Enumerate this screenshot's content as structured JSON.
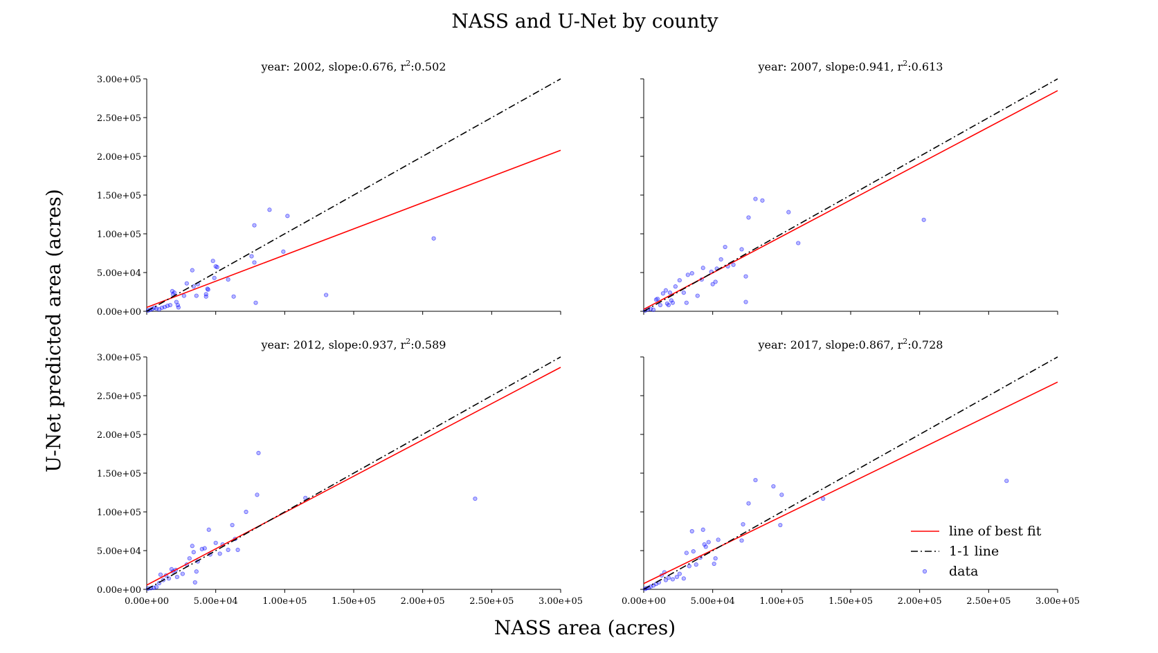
{
  "figure": {
    "title": "NASS and U-Net by county",
    "xlabel": "NASS area (acres)",
    "ylabel": "U-Net predicted area (acres)"
  },
  "legend": {
    "placement": "lower-right",
    "entries": [
      {
        "label": "line of best fit",
        "color": "#ff0000",
        "style": "solid"
      },
      {
        "label": "1-1 line",
        "color": "#000000",
        "style": "dashdot"
      },
      {
        "label": "data",
        "color": "#0000ff",
        "style": "marker"
      }
    ]
  },
  "colors": {
    "fit": "#ff0000",
    "identity": "#000000",
    "data": "#0000ff"
  },
  "tick_labels": [
    "0.00e+00",
    "5.00e+04",
    "1.00e+05",
    "1.50e+05",
    "2.00e+05",
    "2.50e+05",
    "3.00e+05"
  ],
  "chart_data": [
    {
      "type": "scatter",
      "title_prefix": "year: 2002, slope:0.676, r",
      "title_sup": "2",
      "title_suffix": ":0.502",
      "xlim": [
        0,
        300000
      ],
      "ylim": [
        0,
        300000
      ],
      "fit": {
        "slope": 0.676,
        "intercept": 5000
      },
      "x_tick_labels_shown": false,
      "y_tick_labels_shown": true,
      "points": [
        [
          1000,
          1000
        ],
        [
          2500,
          2000
        ],
        [
          4000,
          3000
        ],
        [
          5500,
          4500
        ],
        [
          7000,
          3500
        ],
        [
          9000,
          2500
        ],
        [
          11000,
          4500
        ],
        [
          13000,
          5500
        ],
        [
          15000,
          7000
        ],
        [
          17000,
          8000
        ],
        [
          20000,
          24000
        ],
        [
          19000,
          22000
        ],
        [
          18500,
          26000
        ],
        [
          21500,
          12000
        ],
        [
          22500,
          8000
        ],
        [
          23000,
          5000
        ],
        [
          27000,
          20000
        ],
        [
          29000,
          36000
        ],
        [
          33000,
          53000
        ],
        [
          34000,
          32000
        ],
        [
          36000,
          20000
        ],
        [
          37000,
          35000
        ],
        [
          43000,
          19000
        ],
        [
          43000,
          22000
        ],
        [
          44000,
          29000
        ],
        [
          44500,
          28000
        ],
        [
          48000,
          65000
        ],
        [
          49000,
          43000
        ],
        [
          50000,
          58000
        ],
        [
          51000,
          57000
        ],
        [
          59000,
          41000
        ],
        [
          63000,
          19000
        ],
        [
          76000,
          71000
        ],
        [
          78000,
          63000
        ],
        [
          79000,
          11000
        ],
        [
          78000,
          111000
        ],
        [
          89000,
          131000
        ],
        [
          99000,
          77000
        ],
        [
          102000,
          123000
        ],
        [
          130000,
          21000
        ],
        [
          208000,
          94000
        ]
      ]
    },
    {
      "type": "scatter",
      "title_prefix": "year: 2007, slope:0.941, r",
      "title_sup": "2",
      "title_suffix": ":0.613",
      "xlim": [
        0,
        300000
      ],
      "ylim": [
        0,
        300000
      ],
      "fit": {
        "slope": 0.941,
        "intercept": 2500
      },
      "x_tick_labels_shown": false,
      "y_tick_labels_shown": false,
      "points": [
        [
          1000,
          1000
        ],
        [
          3000,
          2500
        ],
        [
          5000,
          3000
        ],
        [
          7000,
          2000
        ],
        [
          9000,
          15000
        ],
        [
          10000,
          16000
        ],
        [
          12000,
          8000
        ],
        [
          14000,
          23000
        ],
        [
          16000,
          27000
        ],
        [
          17000,
          10000
        ],
        [
          18000,
          8000
        ],
        [
          19000,
          24000
        ],
        [
          20000,
          14000
        ],
        [
          21000,
          11000
        ],
        [
          23000,
          32000
        ],
        [
          26000,
          40000
        ],
        [
          29000,
          24000
        ],
        [
          31000,
          11000
        ],
        [
          32000,
          47000
        ],
        [
          35000,
          49000
        ],
        [
          39000,
          20000
        ],
        [
          42000,
          41000
        ],
        [
          43000,
          56000
        ],
        [
          49000,
          51000
        ],
        [
          50000,
          35000
        ],
        [
          52000,
          38000
        ],
        [
          53000,
          55000
        ],
        [
          56000,
          67000
        ],
        [
          59000,
          83000
        ],
        [
          61000,
          58000
        ],
        [
          65000,
          60000
        ],
        [
          71000,
          80000
        ],
        [
          74000,
          45000
        ],
        [
          74000,
          12000
        ],
        [
          76000,
          121000
        ],
        [
          81000,
          145000
        ],
        [
          86000,
          143000
        ],
        [
          105000,
          128000
        ],
        [
          112000,
          88000
        ],
        [
          203000,
          118000
        ]
      ]
    },
    {
      "type": "scatter",
      "title_prefix": "year: 2012, slope:0.937, r",
      "title_sup": "2",
      "title_suffix": ":0.589",
      "xlim": [
        0,
        300000
      ],
      "ylim": [
        0,
        300000
      ],
      "fit": {
        "slope": 0.937,
        "intercept": 5500
      },
      "x_tick_labels_shown": true,
      "y_tick_labels_shown": true,
      "points": [
        [
          1000,
          1000
        ],
        [
          3000,
          1500
        ],
        [
          5000,
          2000
        ],
        [
          7000,
          3000
        ],
        [
          9000,
          8000
        ],
        [
          10000,
          19000
        ],
        [
          12000,
          12000
        ],
        [
          14000,
          18000
        ],
        [
          16000,
          14000
        ],
        [
          18000,
          26000
        ],
        [
          19000,
          23000
        ],
        [
          21000,
          25000
        ],
        [
          22000,
          16000
        ],
        [
          26000,
          20000
        ],
        [
          29000,
          32000
        ],
        [
          31000,
          40000
        ],
        [
          33000,
          56000
        ],
        [
          34000,
          48000
        ],
        [
          35000,
          9000
        ],
        [
          36000,
          23000
        ],
        [
          37000,
          36000
        ],
        [
          40000,
          52000
        ],
        [
          42000,
          53000
        ],
        [
          45000,
          77000
        ],
        [
          46000,
          45000
        ],
        [
          50000,
          60000
        ],
        [
          53000,
          46000
        ],
        [
          55000,
          58000
        ],
        [
          59000,
          51000
        ],
        [
          62000,
          83000
        ],
        [
          64000,
          65000
        ],
        [
          66000,
          51000
        ],
        [
          72000,
          100000
        ],
        [
          80000,
          122000
        ],
        [
          81000,
          176000
        ],
        [
          115000,
          118000
        ],
        [
          238000,
          117000
        ]
      ]
    },
    {
      "type": "scatter",
      "title_prefix": "year: 2017, slope:0.867, r",
      "title_sup": "2",
      "title_suffix": ":0.728",
      "xlim": [
        0,
        300000
      ],
      "ylim": [
        0,
        300000
      ],
      "fit": {
        "slope": 0.867,
        "intercept": 7500
      },
      "x_tick_labels_shown": true,
      "y_tick_labels_shown": false,
      "points": [
        [
          1000,
          500
        ],
        [
          2000,
          1500
        ],
        [
          3500,
          2000
        ],
        [
          5000,
          3500
        ],
        [
          7000,
          5000
        ],
        [
          9000,
          7000
        ],
        [
          11000,
          9000
        ],
        [
          13000,
          18000
        ],
        [
          15000,
          22000
        ],
        [
          16000,
          12000
        ],
        [
          18000,
          15000
        ],
        [
          21000,
          13000
        ],
        [
          24000,
          16000
        ],
        [
          26000,
          20000
        ],
        [
          29000,
          14000
        ],
        [
          31000,
          47000
        ],
        [
          33000,
          30000
        ],
        [
          35000,
          75000
        ],
        [
          36000,
          49000
        ],
        [
          38000,
          32000
        ],
        [
          41000,
          41000
        ],
        [
          43000,
          77000
        ],
        [
          44000,
          58000
        ],
        [
          45000,
          55000
        ],
        [
          47000,
          61000
        ],
        [
          51000,
          33000
        ],
        [
          52000,
          40000
        ],
        [
          54000,
          64000
        ],
        [
          71000,
          63000
        ],
        [
          72000,
          84000
        ],
        [
          76000,
          111000
        ],
        [
          81000,
          141000
        ],
        [
          94000,
          133000
        ],
        [
          99000,
          83000
        ],
        [
          100000,
          122000
        ],
        [
          130000,
          117000
        ],
        [
          263000,
          140000
        ]
      ]
    }
  ]
}
